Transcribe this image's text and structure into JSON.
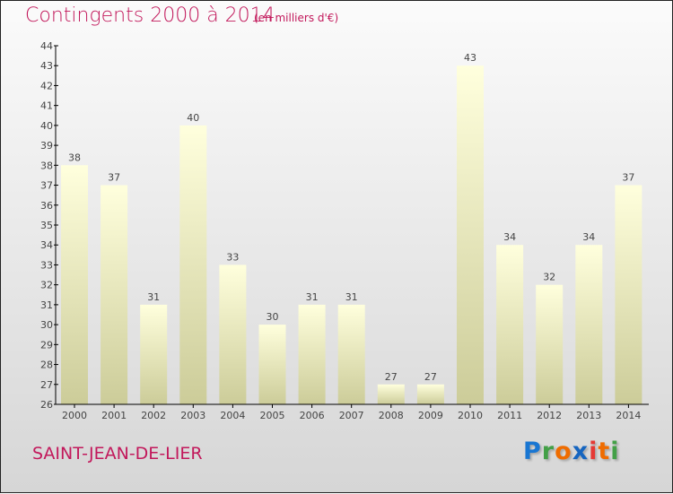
{
  "chart_data": {
    "type": "bar",
    "title": "Contingents 2000 à 2014",
    "unit": "(en milliers d'€)",
    "xlabel": "",
    "ylabel": "",
    "categories": [
      "2000",
      "2001",
      "2002",
      "2003",
      "2004",
      "2005",
      "2006",
      "2007",
      "2008",
      "2009",
      "2010",
      "2011",
      "2012",
      "2013",
      "2014"
    ],
    "values": [
      38,
      37,
      31,
      40,
      33,
      30,
      31,
      31,
      27,
      27,
      43,
      34,
      32,
      34,
      37
    ],
    "ylim": [
      26,
      44
    ],
    "yticks": [
      26,
      27,
      28,
      29,
      30,
      31,
      32,
      33,
      34,
      35,
      36,
      37,
      38,
      39,
      40,
      41,
      42,
      43,
      44
    ],
    "grid": false,
    "bar_color_top": "#ffffdd",
    "bar_color_bottom": "#cccc99"
  },
  "commune": "SAINT-JEAN-DE-LIER",
  "logo": {
    "letters": [
      "P",
      "r",
      "o",
      "x",
      "i",
      "t",
      "i"
    ],
    "colors": [
      "#1976d2",
      "#43a047",
      "#ef6c00",
      "#1565c0",
      "#e53935",
      "#ef6c00",
      "#43a047"
    ]
  }
}
